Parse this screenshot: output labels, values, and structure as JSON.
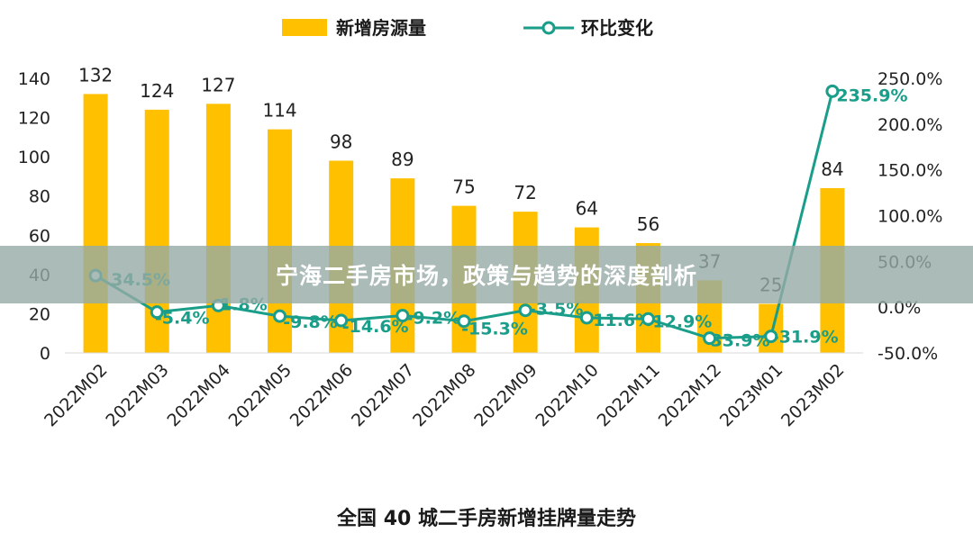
{
  "colors": {
    "bar": "#FFC000",
    "line": "#1A9E8A",
    "text": "#222222",
    "banner_bg": "#98AAA6"
  },
  "banner": {
    "title": "宁海二手房市场，政策与趋势的深度剖析"
  },
  "caption": "全国 40 城二手房新增挂牌量走势",
  "chart_data": {
    "type": "bar",
    "categories": [
      "2022M02",
      "2022M03",
      "2022M04",
      "2022M05",
      "2022M06",
      "2022M07",
      "2022M08",
      "2022M09",
      "2022M10",
      "2022M11",
      "2022M12",
      "2023M01",
      "2023M02"
    ],
    "series": [
      {
        "name": "新增房源量",
        "type": "bar",
        "axis": "left",
        "values": [
          132,
          124,
          127,
          114,
          98,
          89,
          75,
          72,
          64,
          56,
          37,
          25,
          84
        ],
        "labels": [
          "132",
          "124",
          "127",
          "114",
          "98",
          "89",
          "75",
          "72",
          "64",
          "56",
          "37",
          "25",
          "84"
        ]
      },
      {
        "name": "环比变化",
        "type": "line",
        "axis": "right",
        "values": [
          34.5,
          -5.4,
          1.8,
          -9.8,
          -14.6,
          -9.2,
          -15.3,
          -3.5,
          -11.6,
          -12.9,
          -33.9,
          -31.9,
          235.9
        ],
        "labels": [
          "34.5%",
          "-5.4%",
          "1.8%",
          "-9.8%",
          "-14.6%",
          "-9.2%",
          "-15.3%",
          "-3.5%",
          "-11.6%",
          "-12.9%",
          "-33.9%",
          "-31.9%",
          "235.9%"
        ]
      }
    ],
    "y_left": {
      "ylim": [
        0,
        140
      ],
      "ticks": [
        "0",
        "20",
        "40",
        "60",
        "80",
        "100",
        "120",
        "140"
      ]
    },
    "y_right": {
      "ylim": [
        -50,
        250
      ],
      "ticks": [
        "-50.0%",
        "0.0%",
        "50.0%",
        "100.0%",
        "150.0%",
        "200.0%",
        "250.0%"
      ]
    },
    "legend": {
      "placement": "top-center"
    },
    "grid": false
  }
}
